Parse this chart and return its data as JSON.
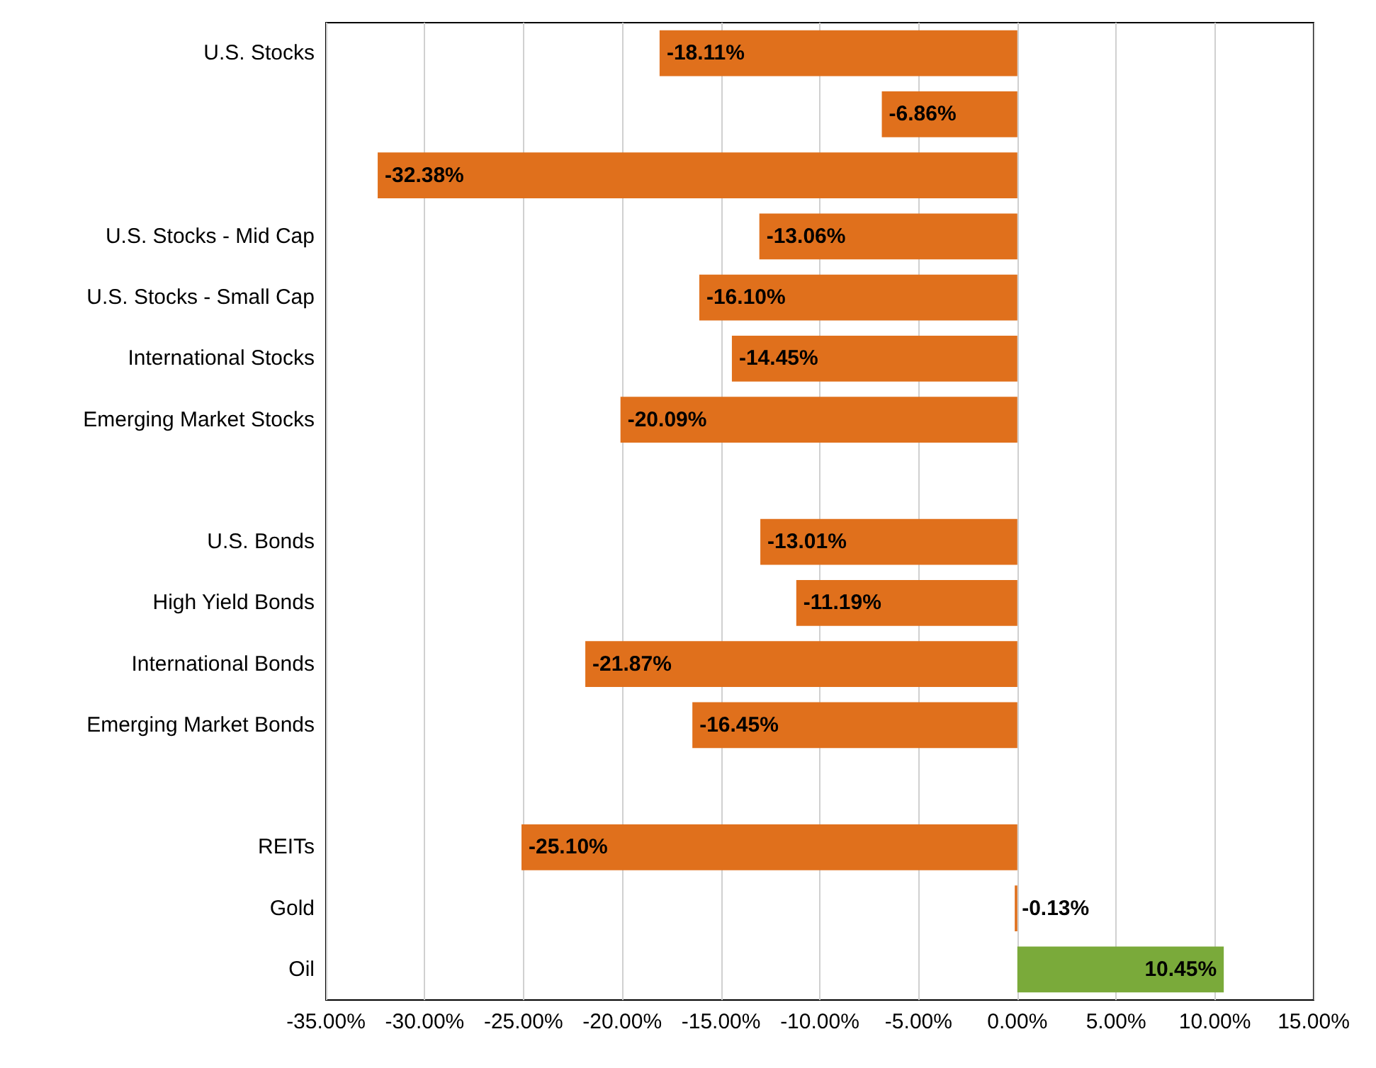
{
  "chart_data": {
    "type": "bar",
    "orientation": "horizontal",
    "categories": [
      "U.S. Stocks",
      null,
      null,
      "U.S. Stocks - Mid Cap",
      "U.S. Stocks - Small Cap",
      "International Stocks",
      "Emerging Market Stocks",
      null,
      "U.S. Bonds",
      "High Yield Bonds",
      "International Bonds",
      "Emerging Market Bonds",
      null,
      "REITs",
      "Gold",
      "Oil"
    ],
    "values": [
      -18.11,
      -6.86,
      -32.38,
      -13.06,
      -16.1,
      -14.45,
      -20.09,
      null,
      -13.01,
      -11.19,
      -21.87,
      -16.45,
      null,
      -25.1,
      -0.13,
      10.45
    ],
    "value_labels": [
      "-18.11%",
      "-6.86%",
      "-32.38%",
      "-13.06%",
      "-16.10%",
      "-14.45%",
      "-20.09%",
      null,
      "-13.01%",
      "-11.19%",
      "-21.87%",
      "-16.45%",
      null,
      "-25.10%",
      "-0.13%",
      "10.45%"
    ],
    "colors": [
      "#e0701c",
      "#e0701c",
      "#e0701c",
      "#e0701c",
      "#e0701c",
      "#e0701c",
      "#e0701c",
      "#e0701c",
      "#e0701c",
      "#e0701c",
      "#e0701c",
      "#e0701c",
      "#e0701c",
      "#e0701c",
      "#e0701c",
      "#7aaa3a"
    ],
    "xlim": [
      -35,
      15
    ],
    "xticks": [
      {
        "value": -35,
        "label": "-35.00%"
      },
      {
        "value": -30,
        "label": "-30.00%"
      },
      {
        "value": -25,
        "label": "-25.00%"
      },
      {
        "value": -20,
        "label": "-20.00%"
      },
      {
        "value": -15,
        "label": "-15.00%"
      },
      {
        "value": -10,
        "label": "-10.00%"
      },
      {
        "value": -5,
        "label": "-5.00%"
      },
      {
        "value": 0,
        "label": "0.00%"
      },
      {
        "value": 5,
        "label": "5.00%"
      },
      {
        "value": 10,
        "label": "10.00%"
      },
      {
        "value": 15,
        "label": "15.00%"
      }
    ],
    "grid": "x"
  }
}
